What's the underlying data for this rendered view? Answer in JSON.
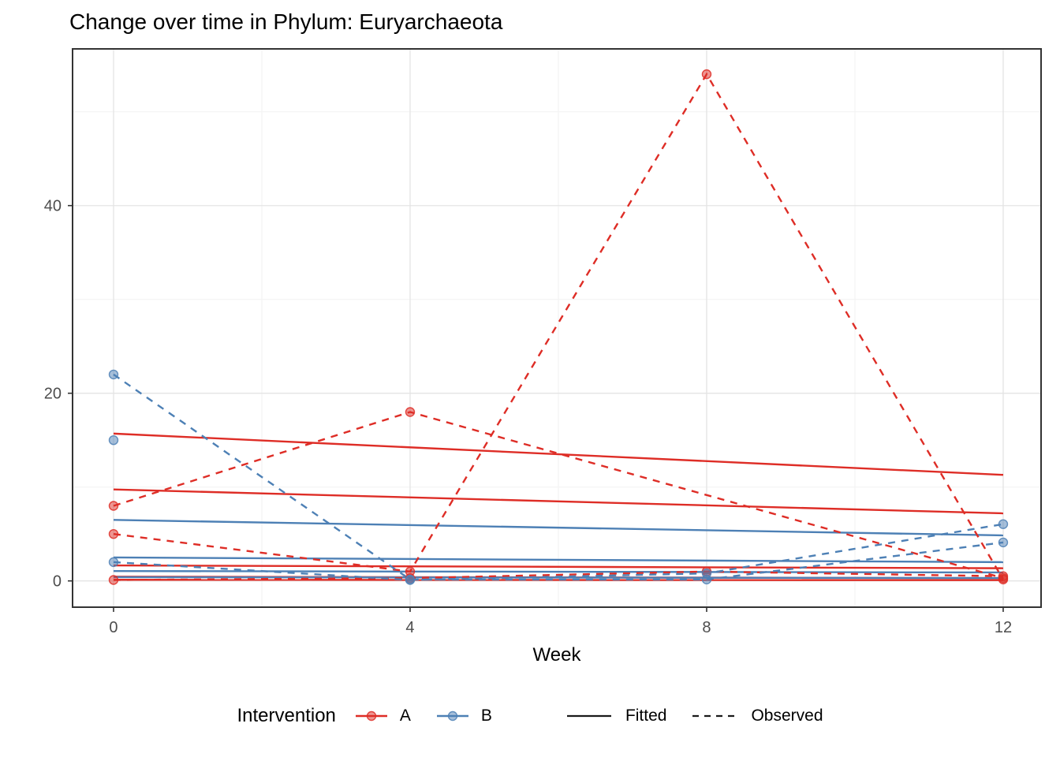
{
  "page": {
    "background": "#FFFFFF"
  },
  "chart_data": {
    "type": "line",
    "title": "Change over time in Phylum: Euryarchaeota",
    "xlabel": "Week",
    "ylabel": "",
    "x_ticks": [
      0,
      4,
      8,
      12
    ],
    "x_minor_ticks": [
      2,
      6,
      10
    ],
    "y_ticks": [
      0,
      20,
      40
    ],
    "y_minor_ticks": [
      10,
      30,
      50
    ],
    "xlim": [
      -0.553,
      12.511
    ],
    "ylim": [
      -2.8,
      56.7
    ],
    "grid": "major+minor",
    "panel_border": true,
    "palette": {
      "A": "#DE2D26",
      "B": "#4D80B5",
      "fitted_key": "#1A1A1A",
      "observed_key": "#1A1A1A",
      "grid_major": "#E4E4E4",
      "grid_minor": "#F2F2F2",
      "axis_text": "#4D4D4D",
      "panel_border_color": "#333333",
      "text": "#000000"
    },
    "legend": {
      "title": "Intervention",
      "position": "bottom",
      "groups": [
        {
          "label": "A",
          "color": "#DE2D26"
        },
        {
          "label": "B",
          "color": "#4D80B5"
        }
      ],
      "linetypes": [
        {
          "label": "Fitted",
          "style": "solid"
        },
        {
          "label": "Observed",
          "style": "dashed"
        }
      ]
    },
    "series": [
      {
        "group": "A",
        "linetype": "Fitted",
        "weeks": [
          0,
          12
        ],
        "values": [
          15.7,
          11.3
        ],
        "points": false
      },
      {
        "group": "A",
        "linetype": "Fitted",
        "weeks": [
          0,
          12
        ],
        "values": [
          9.75,
          7.2
        ],
        "points": false
      },
      {
        "group": "A",
        "linetype": "Fitted",
        "weeks": [
          0,
          12
        ],
        "values": [
          1.65,
          1.35
        ],
        "points": false
      },
      {
        "group": "A",
        "linetype": "Fitted",
        "weeks": [
          0,
          12
        ],
        "values": [
          0.45,
          0.3
        ],
        "points": false
      },
      {
        "group": "A",
        "linetype": "Fitted",
        "weeks": [
          0,
          12
        ],
        "values": [
          0.12,
          0.08
        ],
        "points": false
      },
      {
        "group": "B",
        "linetype": "Fitted",
        "weeks": [
          0,
          12
        ],
        "values": [
          6.5,
          4.85
        ],
        "points": false
      },
      {
        "group": "B",
        "linetype": "Fitted",
        "weeks": [
          0,
          12
        ],
        "values": [
          2.5,
          2.0
        ],
        "points": false
      },
      {
        "group": "B",
        "linetype": "Fitted",
        "weeks": [
          0,
          12
        ],
        "values": [
          1.05,
          0.9
        ],
        "points": false
      },
      {
        "group": "B",
        "linetype": "Fitted",
        "weeks": [
          0,
          12
        ],
        "values": [
          0.4,
          0.3
        ],
        "points": false
      },
      {
        "group": "A",
        "linetype": "Observed",
        "weeks": [
          0,
          4,
          12
        ],
        "values": [
          8,
          18,
          0.3
        ],
        "points": true
      },
      {
        "group": "A",
        "linetype": "Observed",
        "weeks": [
          0,
          4,
          8,
          12
        ],
        "values": [
          5,
          1.0,
          54,
          0.15
        ],
        "points": true
      },
      {
        "group": "A",
        "linetype": "Observed",
        "weeks": [
          0,
          4,
          8,
          12
        ],
        "values": [
          0.1,
          0.3,
          1.0,
          0.5
        ],
        "points": true
      },
      {
        "group": "B",
        "linetype": "Observed",
        "weeks": [
          0,
          4,
          8,
          12
        ],
        "values": [
          22,
          0.15,
          0.15,
          4.1
        ],
        "points": true
      },
      {
        "group": "B",
        "linetype": "Observed",
        "weeks": [
          0
        ],
        "values": [
          15
        ],
        "points": true
      },
      {
        "group": "B",
        "linetype": "Observed",
        "weeks": [
          0,
          4,
          8,
          12
        ],
        "values": [
          2,
          0.1,
          0.8,
          6.05
        ],
        "points": true
      }
    ]
  }
}
